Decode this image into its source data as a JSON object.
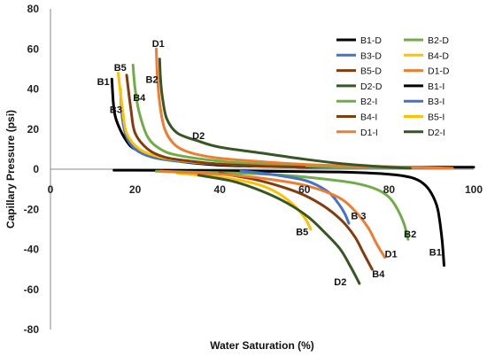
{
  "chart_data": {
    "type": "line",
    "title": "",
    "xlabel": "Water Saturation (%)",
    "ylabel": "Capillary Pressure (psi)",
    "xlim": [
      0,
      100
    ],
    "ylim": [
      -80,
      80
    ],
    "xticks": [
      "0",
      "20",
      "40",
      "60",
      "80",
      "100"
    ],
    "yticks": [
      "80",
      "60",
      "40",
      "20",
      "0",
      "-20",
      "-40",
      "-60",
      "-80"
    ],
    "grid": false,
    "legend_position": "top-right",
    "colors": {
      "B1": "#000000",
      "B2": "#70ad47",
      "B3": "#4472c4",
      "B4": "#843c0c",
      "B5": "#ffc000",
      "D1": "#ed7d31",
      "D2": "#375623"
    },
    "series": [
      {
        "name": "B1-D",
        "color": "#000000",
        "x": [
          14.5,
          15.0,
          16.0,
          18.0,
          20.0,
          25.0,
          30.0,
          40.0,
          50.0,
          60.0,
          70.0,
          80.0,
          90.0,
          100.0
        ],
        "y": [
          45,
          30,
          22,
          14,
          10,
          6,
          4,
          2,
          1.5,
          1,
          1,
          1,
          1,
          1
        ]
      },
      {
        "name": "B2-D",
        "color": "#70ad47",
        "x": [
          19.5,
          20.0,
          21.0,
          23.0,
          26.0,
          30.0,
          40.0,
          50.0,
          60.0,
          70.0,
          85.0
        ],
        "y": [
          52,
          40,
          28,
          16,
          10,
          7,
          4,
          2.5,
          1.5,
          1,
          1
        ]
      },
      {
        "name": "B3-D",
        "color": "#4472c4",
        "x": [
          16.5,
          17.0,
          18.0,
          20.0,
          24.0,
          30.0,
          40.0,
          50.0,
          60.0
        ],
        "y": [
          40,
          25,
          16,
          10,
          6,
          4,
          2.5,
          1.5,
          1
        ]
      },
      {
        "name": "B4-D",
        "color": "#ffc000",
        "x": [
          16.0,
          17.0,
          18.0,
          21.0,
          26.0,
          32.0,
          40.0,
          50.0,
          60.0
        ],
        "y": [
          48,
          30,
          18,
          10,
          6,
          4,
          2.5,
          1.5,
          1
        ]
      },
      {
        "name": "B5-D",
        "color": "#843c0c",
        "x": [
          18.0,
          19.0,
          20.0,
          23.0,
          27.0,
          33.0,
          40.0,
          50.0,
          60.0
        ],
        "y": [
          47,
          30,
          18,
          10,
          6,
          4,
          2.5,
          1.5,
          1
        ]
      },
      {
        "name": "D1-D",
        "color": "#ed7d31",
        "x": [
          25.0,
          25.3,
          26.0,
          27.0,
          29.0,
          32.0,
          38.0,
          45.0,
          55.0,
          65.0,
          75.0,
          85.0,
          95.0
        ],
        "y": [
          60,
          45,
          30,
          20,
          13,
          9,
          6,
          4.5,
          3,
          2,
          1.5,
          1,
          0.5
        ]
      },
      {
        "name": "D2-D",
        "color": "#375623",
        "x": [
          25.8,
          26.0,
          26.5,
          27.5,
          30.0,
          35.0,
          40.0,
          50.0,
          60.0,
          70.0,
          80.0,
          85.0
        ],
        "y": [
          55,
          45,
          35,
          25,
          18,
          14,
          11,
          8,
          5,
          2.5,
          1,
          0.5
        ]
      },
      {
        "name": "B1-I",
        "color": "#000000",
        "x": [
          15.0,
          20.0,
          30.0,
          40.0,
          50.0,
          60.0,
          70.0,
          80.0,
          85.0,
          88.0,
          90.0,
          91.5,
          92.5,
          93.0
        ],
        "y": [
          -0.5,
          -0.5,
          -0.6,
          -0.8,
          -1,
          -1.2,
          -1.5,
          -2.5,
          -4,
          -7,
          -12,
          -20,
          -35,
          -48
        ]
      },
      {
        "name": "B2-I",
        "color": "#70ad47",
        "x": [
          25.0,
          35.0,
          45.0,
          55.0,
          65.0,
          72.0,
          77.0,
          80.0,
          82.0,
          83.5,
          84.5
        ],
        "y": [
          -1,
          -1.5,
          -2,
          -3,
          -5,
          -7,
          -10,
          -14,
          -20,
          -27,
          -35
        ]
      },
      {
        "name": "B3-I",
        "color": "#4472c4",
        "x": [
          45.0,
          50.0,
          55.0,
          60.0,
          63.0,
          66.0,
          68.0,
          69.5,
          70.5
        ],
        "y": [
          -1,
          -2,
          -3.5,
          -5.5,
          -8,
          -12,
          -17,
          -22,
          -27
        ]
      },
      {
        "name": "B4-I",
        "color": "#843c0c",
        "x": [
          40.0,
          48.0,
          55.0,
          60.0,
          65.0,
          69.0,
          72.0,
          74.0,
          76.0
        ],
        "y": [
          -2,
          -5,
          -9,
          -13,
          -19,
          -26,
          -34,
          -42,
          -50
        ]
      },
      {
        "name": "B5-I",
        "color": "#ffc000",
        "x": [
          30.0,
          40.0,
          48.0,
          53.0,
          57.0,
          60.0,
          61.5
        ],
        "y": [
          -2,
          -4,
          -7,
          -11,
          -17,
          -24,
          -30
        ]
      },
      {
        "name": "D1-I",
        "color": "#ed7d31",
        "x": [
          26.0,
          40.0,
          50.0,
          60.0,
          68.0,
          72.0,
          75.0,
          77.0,
          79.0
        ],
        "y": [
          -1,
          -2.5,
          -4.5,
          -8,
          -14,
          -21,
          -29,
          -37,
          -44
        ]
      },
      {
        "name": "D2-I",
        "color": "#375623",
        "x": [
          35.0,
          43.0,
          50.0,
          56.0,
          61.0,
          65.0,
          68.5,
          71.0,
          73.0
        ],
        "y": [
          -3,
          -6,
          -11,
          -17,
          -24,
          -32,
          -40,
          -49,
          -57
        ]
      }
    ],
    "annotations": [
      {
        "text": "D1",
        "x": 24.0,
        "y": 61
      },
      {
        "text": "B5",
        "x": 15.0,
        "y": 49
      },
      {
        "text": "B2",
        "x": 22.5,
        "y": 43
      },
      {
        "text": "B1",
        "x": 11.0,
        "y": 42
      },
      {
        "text": "B4",
        "x": 19.5,
        "y": 34
      },
      {
        "text": "B3",
        "x": 14.0,
        "y": 28
      },
      {
        "text": "D2",
        "x": 33.5,
        "y": 15
      },
      {
        "text": "B 3",
        "x": 71.0,
        "y": -25
      },
      {
        "text": "B2",
        "x": 83.5,
        "y": -34
      },
      {
        "text": "B5",
        "x": 58.0,
        "y": -33
      },
      {
        "text": "D1",
        "x": 79.0,
        "y": -44
      },
      {
        "text": "B1",
        "x": 89.5,
        "y": -43
      },
      {
        "text": "B4",
        "x": 76.0,
        "y": -54
      },
      {
        "text": "D2",
        "x": 67.0,
        "y": -58
      }
    ]
  }
}
